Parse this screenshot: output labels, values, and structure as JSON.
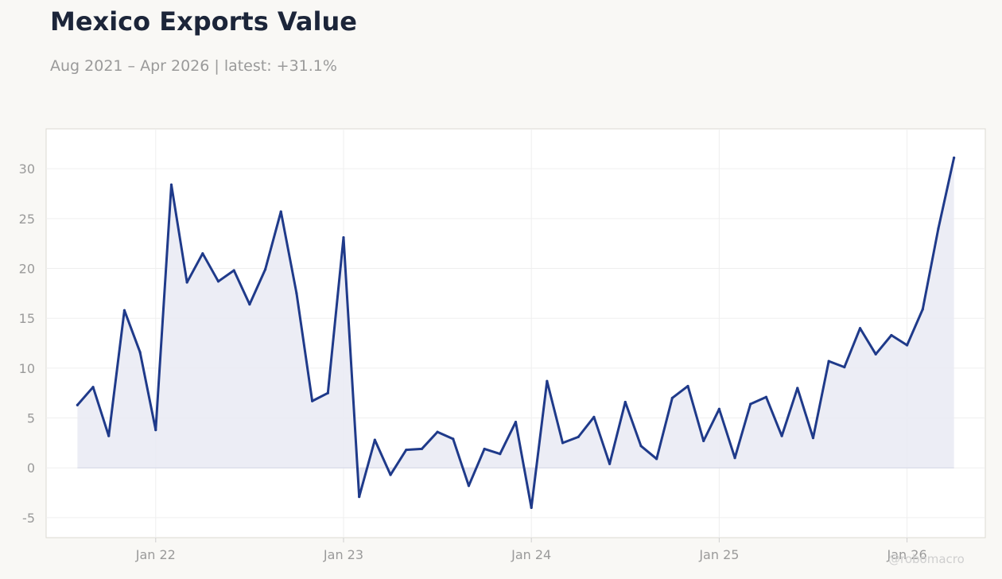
{
  "header": {
    "title": "Mexico Exports Value",
    "subtitle": "Aug 2021 – Apr 2026 | latest: +31.1%"
  },
  "watermark": "@robomacro",
  "colors": {
    "background": "#f9f8f5",
    "plot_background": "#ffffff",
    "line": "#1f3a8a",
    "fill": "#e9eaf3",
    "grid": "#efefef",
    "axis_text": "#9a9a9a",
    "title": "#1c2539"
  },
  "chart_data": {
    "type": "area",
    "title": "Mexico Exports Value",
    "subtitle": "Aug 2021 – Apr 2026 | latest: +31.1%",
    "xlabel": "",
    "ylabel": "",
    "ylim": [
      -7,
      34
    ],
    "xlim": [
      "2021-06",
      "2026-06"
    ],
    "yticks": [
      -5,
      0,
      5,
      10,
      15,
      20,
      25,
      30
    ],
    "xticks": [
      {
        "date": "2022-01",
        "label": "Jan 22"
      },
      {
        "date": "2023-01",
        "label": "Jan 23"
      },
      {
        "date": "2024-01",
        "label": "Jan 24"
      },
      {
        "date": "2025-01",
        "label": "Jan 25"
      },
      {
        "date": "2026-01",
        "label": "Jan 26"
      }
    ],
    "grid": true,
    "legend": "none",
    "series": [
      {
        "x": [
          "2021-08",
          "2021-09",
          "2021-10",
          "2021-11",
          "2021-12",
          "2022-01",
          "2022-02",
          "2022-03",
          "2022-04",
          "2022-05",
          "2022-06",
          "2022-07",
          "2022-08",
          "2022-09",
          "2022-10",
          "2022-11",
          "2022-12",
          "2023-01",
          "2023-02",
          "2023-03",
          "2023-04",
          "2023-05",
          "2023-06",
          "2023-07",
          "2023-08",
          "2023-09",
          "2023-10",
          "2023-11",
          "2023-12",
          "2024-01",
          "2024-02",
          "2024-03",
          "2024-04",
          "2024-05",
          "2024-06",
          "2024-07",
          "2024-08",
          "2024-09",
          "2024-10",
          "2024-11",
          "2024-12",
          "2025-01",
          "2025-02",
          "2025-03",
          "2025-04",
          "2025-05",
          "2025-06",
          "2025-07",
          "2025-08",
          "2025-09",
          "2025-10",
          "2025-11",
          "2025-12",
          "2026-01",
          "2026-02",
          "2026-03",
          "2026-04"
        ],
        "values": [
          6.3,
          8.1,
          3.2,
          15.8,
          11.6,
          3.8,
          28.4,
          18.6,
          21.5,
          18.7,
          19.8,
          16.4,
          19.9,
          25.7,
          17.5,
          6.7,
          7.5,
          23.1,
          -2.9,
          2.8,
          -0.7,
          1.8,
          1.9,
          3.6,
          2.9,
          -1.8,
          1.9,
          1.4,
          4.6,
          -4.0,
          8.7,
          2.5,
          3.1,
          5.1,
          0.4,
          6.6,
          2.2,
          0.9,
          7.0,
          8.2,
          2.7,
          5.9,
          1.0,
          6.4,
          7.1,
          3.2,
          8.0,
          3.0,
          10.7,
          10.1,
          14.0,
          11.4,
          13.3,
          12.3,
          15.9,
          24.0,
          31.1
        ]
      }
    ]
  }
}
